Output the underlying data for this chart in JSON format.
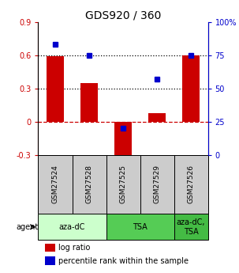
{
  "title": "GDS920 / 360",
  "samples": [
    "GSM27524",
    "GSM27528",
    "GSM27525",
    "GSM27529",
    "GSM27526"
  ],
  "log_ratios": [
    0.59,
    0.35,
    -0.35,
    0.08,
    0.6
  ],
  "percentile_ranks": [
    83,
    75,
    20,
    57,
    75
  ],
  "ylim_left": [
    -0.3,
    0.9
  ],
  "ylim_right": [
    0,
    100
  ],
  "yticks_left": [
    -0.3,
    0.0,
    0.3,
    0.6,
    0.9
  ],
  "yticks_right": [
    0,
    25,
    50,
    75,
    100
  ],
  "ytick_labels_left": [
    "-0.3",
    "0",
    "0.3",
    "0.6",
    "0.9"
  ],
  "ytick_labels_right": [
    "0",
    "25",
    "50",
    "75",
    "100%"
  ],
  "hlines_dotted": [
    0.3,
    0.6
  ],
  "hline_dashed": 0.0,
  "bar_color": "#cc0000",
  "dot_color": "#0000cc",
  "bar_width": 0.5,
  "agent_groups": [
    {
      "label": "aza-dC",
      "start": 0,
      "end": 1,
      "color": "#ccffcc"
    },
    {
      "label": "TSA",
      "start": 2,
      "end": 3,
      "color": "#66dd66"
    },
    {
      "label": "aza-dC,\nTSA",
      "start": 4,
      "end": 4,
      "color": "#55cc55"
    }
  ],
  "agent_label": "agent",
  "legend_bar_label": "log ratio",
  "legend_dot_label": "percentile rank within the sample",
  "bar_color_left": "#cc0000",
  "dot_color_right": "#0000cc",
  "sample_box_color": "#cccccc"
}
